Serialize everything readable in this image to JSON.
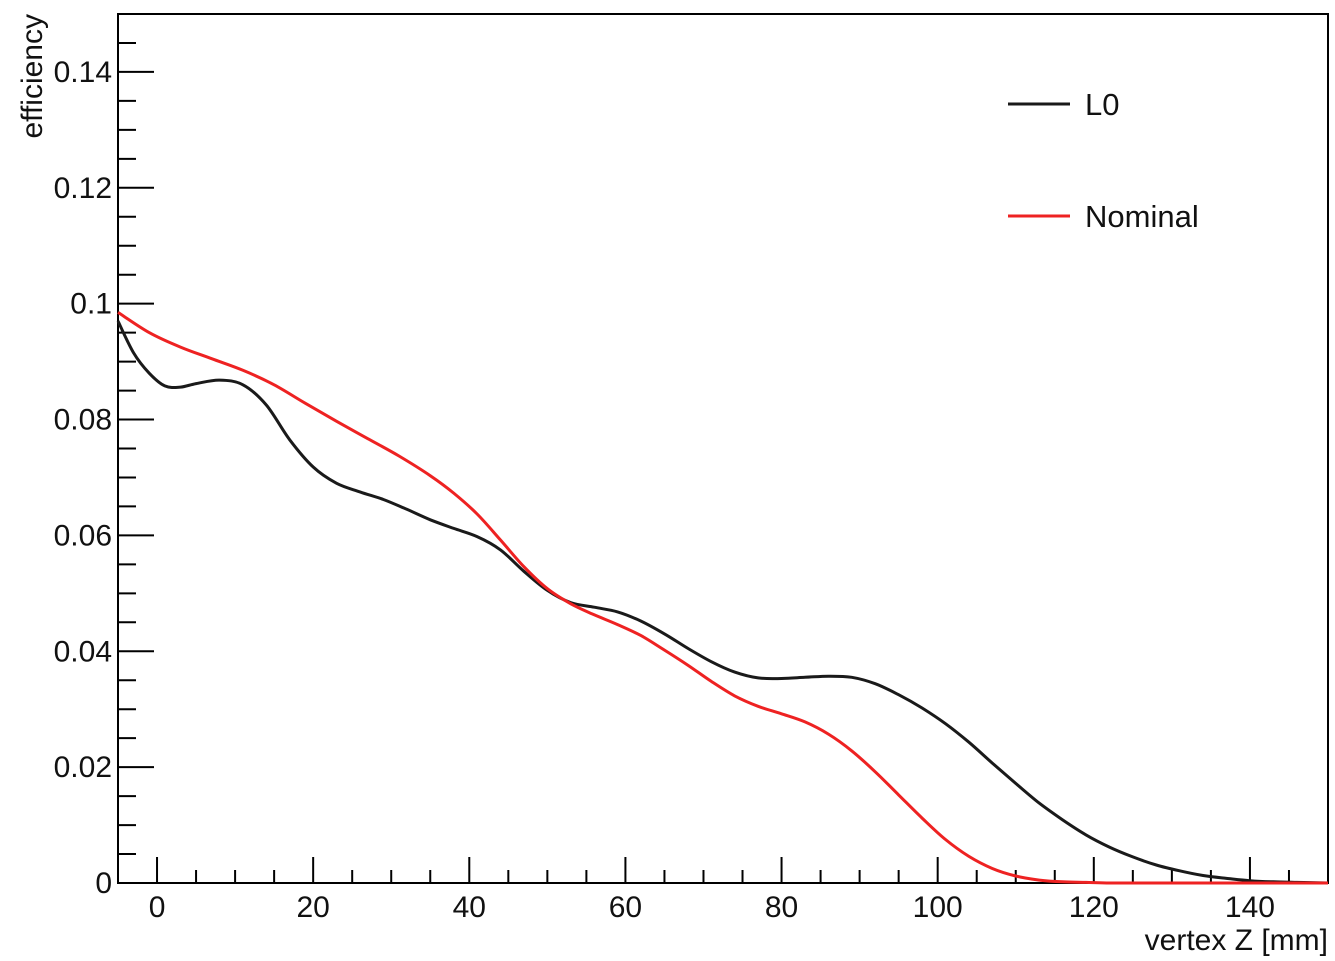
{
  "chart_data": {
    "type": "line",
    "title": "",
    "xlabel": "vertex Z [mm]",
    "ylabel": "efficiency",
    "xlim": [
      -5,
      150
    ],
    "ylim": [
      0,
      0.15
    ],
    "grid": false,
    "legend_position": "top-right",
    "x_ticks": [
      0,
      20,
      40,
      60,
      80,
      100,
      120,
      140
    ],
    "x_tick_labels": [
      "0",
      "20",
      "40",
      "60",
      "80",
      "100",
      "120",
      "140"
    ],
    "y_ticks": [
      0,
      0.02,
      0.04,
      0.06,
      0.08,
      0.1,
      0.12,
      0.14
    ],
    "y_tick_labels": [
      "0",
      "0.02",
      "0.04",
      "0.06",
      "0.08",
      "0.1",
      "0.12",
      "0.14"
    ],
    "series": [
      {
        "name": "L0",
        "color": "#1a1a1a",
        "x": [
          -5,
          -3,
          -1,
          1,
          3,
          5,
          8,
          11,
          14,
          17,
          20,
          23,
          26,
          29,
          32,
          35,
          38,
          41,
          44,
          47,
          50,
          53,
          56,
          59,
          62,
          65,
          68,
          71,
          74,
          77,
          80,
          83,
          86,
          89,
          92,
          95,
          98,
          101,
          104,
          107,
          110,
          113,
          116,
          119,
          122,
          125,
          128,
          131,
          134,
          137,
          140,
          143,
          146,
          150
        ],
        "y": [
          0.097,
          0.0915,
          0.088,
          0.0858,
          0.0856,
          0.0862,
          0.0868,
          0.086,
          0.0825,
          0.0765,
          0.0718,
          0.069,
          0.0675,
          0.0662,
          0.0645,
          0.0627,
          0.0612,
          0.0598,
          0.0575,
          0.0538,
          0.0505,
          0.0484,
          0.0476,
          0.0468,
          0.0452,
          0.043,
          0.0405,
          0.0382,
          0.0364,
          0.0354,
          0.0353,
          0.0355,
          0.0357,
          0.0355,
          0.0344,
          0.0325,
          0.0302,
          0.0275,
          0.0243,
          0.0207,
          0.0172,
          0.0138,
          0.0109,
          0.0083,
          0.0062,
          0.0045,
          0.0031,
          0.0021,
          0.0013,
          0.0008,
          0.0004,
          0.0002,
          0.0001,
          0.0
        ]
      },
      {
        "name": "Nominal",
        "color": "#ee2222",
        "x": [
          -5,
          -1,
          3,
          7,
          11,
          15,
          19,
          23,
          27,
          31,
          35,
          38,
          41,
          44,
          47,
          50,
          53,
          56,
          59,
          62,
          65,
          68,
          71,
          74,
          77,
          80,
          83,
          86,
          89,
          92,
          95,
          98,
          101,
          104,
          107,
          110,
          113,
          116,
          119,
          122,
          125,
          130,
          135,
          140,
          150
        ],
        "y": [
          0.0985,
          0.095,
          0.0925,
          0.0905,
          0.0885,
          0.086,
          0.0828,
          0.0797,
          0.0767,
          0.0737,
          0.0703,
          0.0673,
          0.0637,
          0.0592,
          0.0546,
          0.0508,
          0.0482,
          0.0463,
          0.0446,
          0.0427,
          0.0402,
          0.0376,
          0.0348,
          0.0323,
          0.0305,
          0.0292,
          0.0278,
          0.0257,
          0.0228,
          0.0192,
          0.0152,
          0.0112,
          0.0075,
          0.0046,
          0.0025,
          0.0012,
          0.0005,
          0.0002,
          0.0001,
          0.0,
          0.0,
          0.0,
          0.0,
          0.0,
          0.0
        ]
      }
    ]
  }
}
